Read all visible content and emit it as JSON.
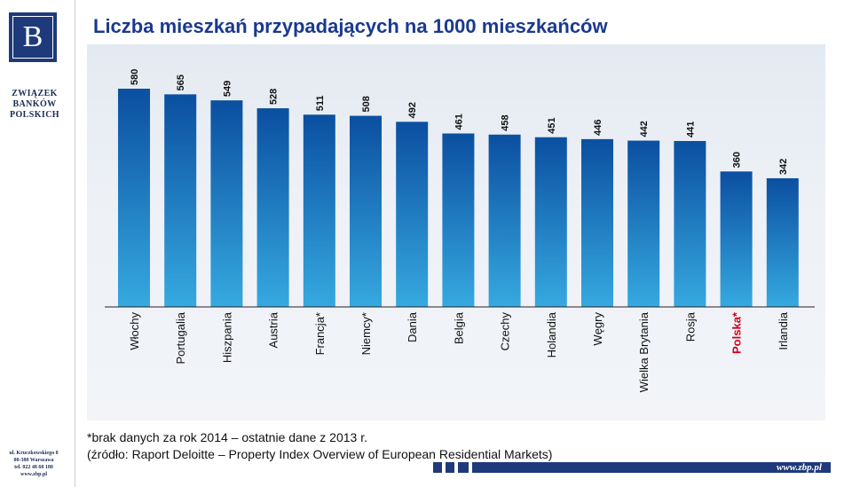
{
  "org": {
    "logo_letter": "B",
    "name_lines": [
      "ZWIĄZEK",
      "BANKÓW",
      "POLSKICH"
    ],
    "address_lines": [
      "ul. Kruczkowskiego 8",
      "00-380 Warszawa",
      "tel. 022 48 68 180",
      "www.zbp.pl"
    ]
  },
  "title": "Liczba mieszkań przypadających na 1000 mieszkańców",
  "chart_data": {
    "type": "bar",
    "categories": [
      "Włochy",
      "Portugalia",
      "Hiszpania",
      "Austria",
      "Francja*",
      "Niemcy*",
      "Dania",
      "Belgia",
      "Czechy",
      "Holandia",
      "Węgry",
      "Wielka Brytania",
      "Rosja",
      "Polska*",
      "Irlandia"
    ],
    "values": [
      580,
      565,
      549,
      528,
      511,
      508,
      492,
      461,
      458,
      451,
      446,
      442,
      441,
      360,
      342
    ],
    "title": "",
    "xlabel": "",
    "ylabel": "",
    "ylim": [
      0,
      580
    ],
    "grid": false,
    "highlight_category": "Polska*",
    "colors": {
      "bar_top": "#0b4fa0",
      "bar_bottom": "#36a9e0",
      "label": "#111111",
      "highlight_label": "#d0021b"
    }
  },
  "footnotes": [
    "*brak danych za rok 2014 – ostatnie dane z 2013 r.",
    "(źródło: Raport Deloitte – Property Index Overview of European Residential Markets)"
  ],
  "footer": {
    "url": "www.zbp.pl",
    "bar_color": "#1e3a7a"
  }
}
